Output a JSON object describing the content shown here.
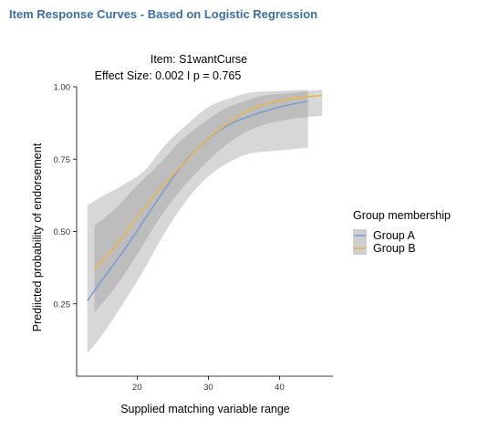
{
  "header": {
    "title": "Item Response Curves - Based on Logistic Regression"
  },
  "chart_data": {
    "type": "line",
    "title": "Item:  S1wantCurse",
    "subtitle": "Effect Size:  0.002  I p =  0.765",
    "xlabel": "Supplied matching variable range",
    "ylabel": "Prediicted probability of endorsement",
    "xlim": [
      11.5,
      47.5
    ],
    "ylim": [
      0.0,
      1.0
    ],
    "xticks": [
      20,
      30,
      40
    ],
    "yticks": [
      0.25,
      0.5,
      0.75,
      1.0
    ],
    "ytick_labels": [
      "0.25",
      "0.50",
      "0.75",
      "1.00"
    ],
    "grid": false,
    "legend": {
      "title": "Group membership",
      "position": "right"
    },
    "series": [
      {
        "name": "Group A",
        "color": "#7b9fd4",
        "x": [
          13,
          15,
          18,
          21,
          24,
          27,
          30,
          33,
          36,
          40,
          44
        ],
        "y": [
          0.26,
          0.33,
          0.43,
          0.54,
          0.65,
          0.75,
          0.82,
          0.87,
          0.9,
          0.93,
          0.95
        ],
        "lower": [
          0.08,
          0.14,
          0.25,
          0.37,
          0.5,
          0.61,
          0.69,
          0.74,
          0.77,
          0.78,
          0.79
        ],
        "upper": [
          0.59,
          0.62,
          0.66,
          0.71,
          0.8,
          0.87,
          0.93,
          0.96,
          0.98,
          0.985,
          0.99
        ]
      },
      {
        "name": "Group B",
        "color": "#e8b64a",
        "x": [
          14,
          17,
          20,
          23,
          26,
          29,
          32,
          35,
          38,
          42,
          46
        ],
        "y": [
          0.37,
          0.45,
          0.55,
          0.64,
          0.72,
          0.8,
          0.86,
          0.91,
          0.94,
          0.96,
          0.97
        ],
        "lower": [
          0.22,
          0.31,
          0.42,
          0.54,
          0.64,
          0.72,
          0.79,
          0.84,
          0.87,
          0.89,
          0.9
        ],
        "upper": [
          0.52,
          0.58,
          0.66,
          0.73,
          0.81,
          0.87,
          0.92,
          0.95,
          0.97,
          0.98,
          0.99
        ]
      }
    ]
  }
}
